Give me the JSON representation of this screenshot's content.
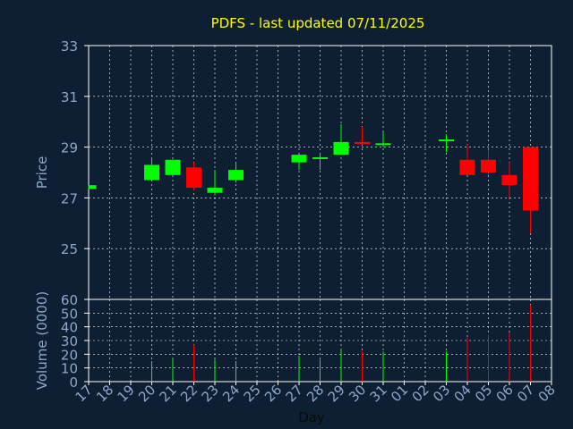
{
  "chart_data": {
    "type": "candlestick",
    "title": "PDFS - last updated 07/11/2025",
    "xlabel": "Day",
    "price_axis": {
      "ylabel": "Price",
      "ylim": [
        23,
        33
      ],
      "yticks": [
        25,
        27,
        29,
        31,
        33
      ]
    },
    "volume_axis": {
      "ylabel": "Volume (0000)",
      "ylim": [
        0,
        60
      ],
      "yticks": [
        0,
        10,
        20,
        30,
        40,
        50,
        60
      ]
    },
    "grid": true,
    "colors": {
      "background": "#0f1f33",
      "frame": "#ffffff",
      "grid": "#ffffff",
      "text_title": "#ffff00",
      "text_axis": "#8fa8c8",
      "up": "#00ff00",
      "down": "#ff0000"
    },
    "categories": [
      "17",
      "18",
      "19",
      "20",
      "21",
      "22",
      "23",
      "24",
      "25",
      "26",
      "27",
      "28",
      "29",
      "30",
      "31",
      "01",
      "02",
      "03",
      "04",
      "05",
      "06",
      "07",
      "08"
    ],
    "candles": [
      {
        "day": "17",
        "open": 27.35,
        "close": 27.5,
        "high": 27.5,
        "low": 27.35,
        "volume": 0
      },
      {
        "day": "20",
        "open": 27.7,
        "close": 28.3,
        "high": 28.6,
        "low": 27.7,
        "volume": 15
      },
      {
        "day": "21",
        "open": 27.9,
        "close": 28.5,
        "high": 28.5,
        "low": 27.9,
        "volume": 17
      },
      {
        "day": "22",
        "open": 28.2,
        "close": 27.4,
        "high": 28.4,
        "low": 27.3,
        "volume": 27
      },
      {
        "day": "23",
        "open": 27.2,
        "close": 27.4,
        "high": 28.1,
        "low": 27.1,
        "volume": 16
      },
      {
        "day": "24",
        "open": 27.7,
        "close": 28.1,
        "high": 28.4,
        "low": 27.6,
        "volume": 15
      },
      {
        "day": "27",
        "open": 28.4,
        "close": 28.7,
        "high": 28.7,
        "low": 28.1,
        "volume": 19
      },
      {
        "day": "28",
        "open": 28.55,
        "close": 28.6,
        "high": 28.7,
        "low": 28.1,
        "volume": 16
      },
      {
        "day": "29",
        "open": 28.7,
        "close": 29.2,
        "high": 29.9,
        "low": 28.7,
        "volume": 23
      },
      {
        "day": "30",
        "open": 29.2,
        "close": 29.15,
        "high": 29.8,
        "low": 29.1,
        "volume": 22
      },
      {
        "day": "31",
        "open": 29.1,
        "close": 29.15,
        "high": 29.6,
        "low": 29.0,
        "volume": 22
      },
      {
        "day": "03",
        "open": 29.25,
        "close": 29.3,
        "high": 29.5,
        "low": 28.8,
        "volume": 22
      },
      {
        "day": "04",
        "open": 28.5,
        "close": 27.9,
        "high": 29.1,
        "low": 27.9,
        "volume": 32
      },
      {
        "day": "05",
        "open": 28.5,
        "close": 28.0,
        "high": 28.9,
        "low": 27.9,
        "volume": 34
      },
      {
        "day": "06",
        "open": 27.9,
        "close": 27.5,
        "high": 28.4,
        "low": 27.0,
        "volume": 36
      },
      {
        "day": "07",
        "open": 29.0,
        "close": 26.5,
        "high": 29.0,
        "low": 25.6,
        "volume": 56
      }
    ]
  }
}
